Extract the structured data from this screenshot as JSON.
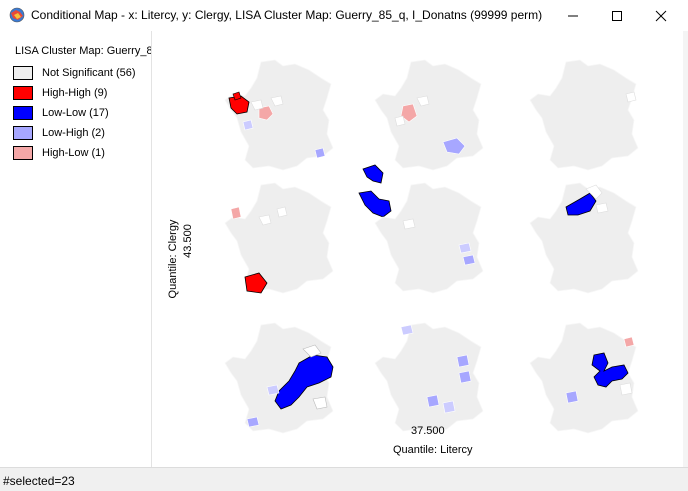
{
  "window": {
    "title": "Conditional Map - x: Litercy, y: Clergy,  LISA Cluster Map: Guerry_85_q, I_Donatns (99999 perm)"
  },
  "legend": {
    "title": "LISA Cluster Map: Guerry_8",
    "items": [
      {
        "label": "Not Significant (56)",
        "color": "#eeeeee"
      },
      {
        "label": "High-High (9)",
        "color": "#ff0000"
      },
      {
        "label": "Low-Low (17)",
        "color": "#0000ff"
      },
      {
        "label": "Low-High (2)",
        "color": "#a7a7ff"
      },
      {
        "label": "High-Low (1)",
        "color": "#f4a7a7"
      }
    ]
  },
  "axes": {
    "y_title": "Quantile: Clergy",
    "y_break": "43.500",
    "x_break": "37.500",
    "x_title": "Quantile: Litercy"
  },
  "status": {
    "text": "#selected=23"
  }
}
